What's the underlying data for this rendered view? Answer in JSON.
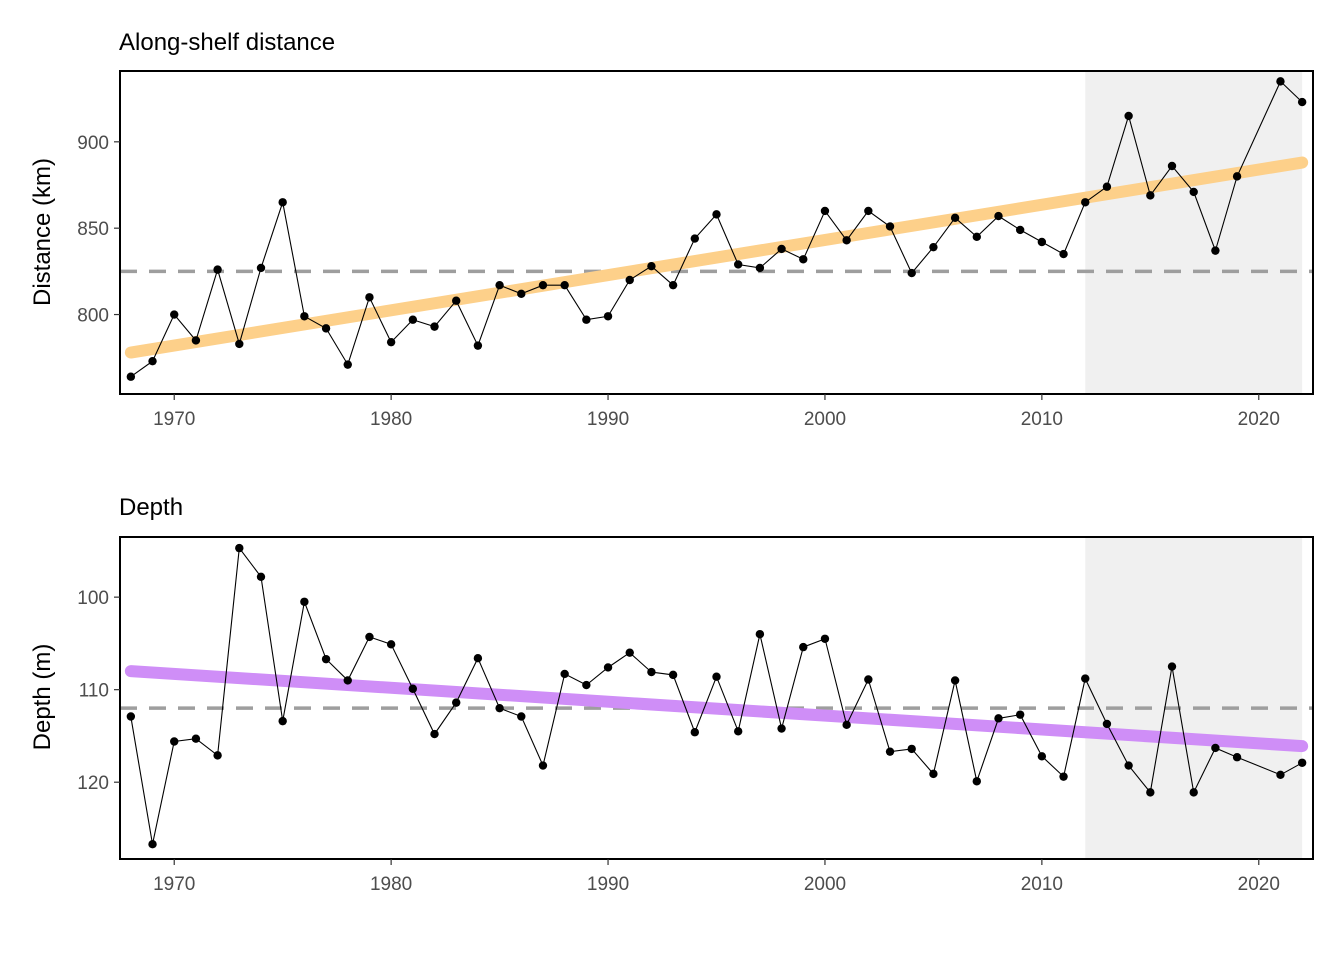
{
  "colors": {
    "distance_trend": "#fdd08a",
    "depth_trend": "#cf8ef7",
    "reference": "#9e9e9e",
    "highlight_region": "#f0f0f0",
    "points": "#000000"
  },
  "chart_data": [
    {
      "type": "line",
      "title": "Along-shelf distance",
      "xlabel": "",
      "ylabel": "Distance (km)",
      "x_ticks": [
        1970,
        1980,
        1990,
        2000,
        2010,
        2020
      ],
      "y_ticks": [
        800,
        850,
        900
      ],
      "xlim": [
        1967.5,
        2022.5
      ],
      "ylim": [
        754,
        941
      ],
      "y_reversed": false,
      "grid": false,
      "highlight_x_range": [
        2012,
        2022
      ],
      "reference_line_y": 825,
      "trend_line": {
        "x": [
          1968,
          2022
        ],
        "y": [
          778,
          888
        ]
      },
      "series": [
        {
          "x": [
            1968,
            1969,
            1970,
            1971,
            1972,
            1973,
            1974,
            1975,
            1976,
            1977,
            1978,
            1979,
            1980,
            1981,
            1982,
            1983,
            1984,
            1985,
            1986,
            1987,
            1988,
            1989,
            1990,
            1991,
            1992,
            1993,
            1994,
            1995,
            1996,
            1997,
            1998,
            1999,
            2000,
            2001,
            2002,
            2003,
            2004,
            2005,
            2006,
            2007,
            2008,
            2009,
            2010,
            2011,
            2012,
            2013,
            2014,
            2015,
            2016,
            2017,
            2018,
            2019,
            2021,
            2022
          ],
          "y": [
            764,
            773,
            800,
            785,
            826,
            783,
            827,
            865,
            799,
            792,
            771,
            810,
            784,
            797,
            793,
            808,
            782,
            817,
            812,
            817,
            817,
            797,
            799,
            820,
            828,
            817,
            844,
            858,
            829,
            827,
            838,
            832,
            860,
            843,
            860,
            851,
            824,
            839,
            856,
            845,
            857,
            849,
            842,
            835,
            865,
            874,
            915,
            869,
            886,
            871,
            837,
            880,
            935,
            923
          ]
        }
      ]
    },
    {
      "type": "line",
      "title": "Depth",
      "xlabel": "",
      "ylabel": "Depth (m)",
      "x_ticks": [
        1970,
        1980,
        1990,
        2000,
        2010,
        2020
      ],
      "y_ticks": [
        100,
        110,
        120
      ],
      "xlim": [
        1967.5,
        2022.5
      ],
      "ylim": [
        93.5,
        128.3
      ],
      "y_reversed": true,
      "grid": false,
      "highlight_x_range": [
        2012,
        2022
      ],
      "reference_line_y": 112,
      "trend_line": {
        "x": [
          1968,
          2022
        ],
        "y": [
          108,
          116.1
        ]
      },
      "series": [
        {
          "x": [
            1968,
            1969,
            1970,
            1971,
            1972,
            1973,
            1974,
            1975,
            1976,
            1977,
            1978,
            1979,
            1980,
            1981,
            1982,
            1983,
            1984,
            1985,
            1986,
            1987,
            1988,
            1989,
            1990,
            1991,
            1992,
            1993,
            1994,
            1995,
            1996,
            1997,
            1998,
            1999,
            2000,
            2001,
            2002,
            2003,
            2004,
            2005,
            2006,
            2007,
            2008,
            2009,
            2010,
            2011,
            2012,
            2013,
            2014,
            2015,
            2016,
            2017,
            2018,
            2019,
            2021,
            2022
          ],
          "y": [
            112.9,
            126.7,
            115.6,
            115.3,
            117.1,
            94.7,
            97.8,
            113.4,
            100.5,
            106.7,
            109.0,
            104.3,
            105.1,
            109.9,
            114.8,
            111.4,
            106.6,
            112.0,
            112.9,
            118.2,
            108.3,
            109.5,
            107.6,
            106.0,
            108.1,
            108.4,
            114.6,
            108.6,
            114.5,
            104.0,
            114.2,
            105.4,
            104.5,
            113.8,
            108.9,
            116.7,
            116.4,
            119.1,
            109.0,
            119.9,
            113.1,
            112.7,
            117.2,
            119.4,
            108.8,
            113.7,
            118.2,
            121.1,
            107.5,
            121.1,
            116.3,
            117.3,
            119.2,
            117.9
          ]
        }
      ]
    }
  ]
}
